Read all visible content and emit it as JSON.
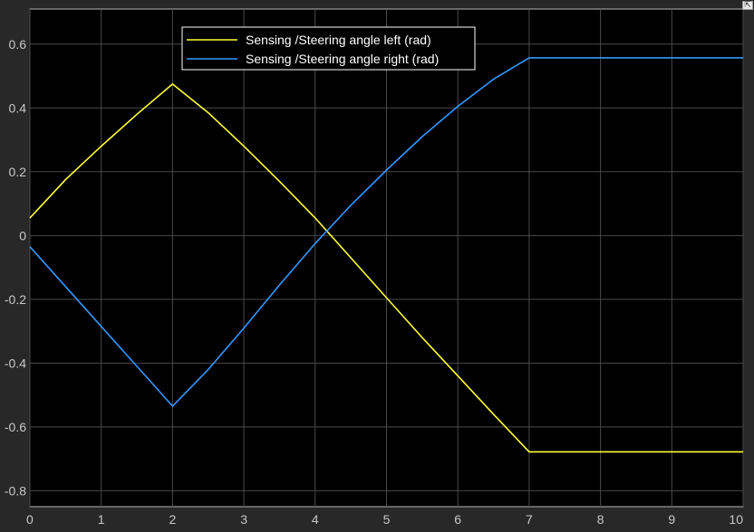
{
  "chart_data": {
    "type": "line",
    "title": "",
    "xlabel": "",
    "ylabel": "",
    "xlim": [
      0,
      10
    ],
    "ylim": [
      -0.85,
      0.71
    ],
    "xticks": [
      0,
      1,
      2,
      3,
      4,
      5,
      6,
      7,
      8,
      9,
      10
    ],
    "yticks": [
      -0.8,
      -0.6,
      -0.4,
      -0.2,
      0,
      0.2,
      0.4,
      0.6
    ],
    "grid": true,
    "background": "#000000",
    "legend_position": "top-center",
    "series": [
      {
        "name": "Sensing /Steering angle left (rad)",
        "color": "#ffff33",
        "x": [
          0,
          0.5,
          1,
          1.5,
          2,
          2.5,
          3,
          3.5,
          4,
          4.5,
          5,
          5.5,
          6,
          6.5,
          7,
          7.5,
          8,
          8.5,
          9,
          9.5,
          10
        ],
        "y": [
          0.055,
          0.175,
          0.28,
          0.38,
          0.475,
          0.385,
          0.28,
          0.17,
          0.055,
          -0.07,
          -0.195,
          -0.32,
          -0.44,
          -0.56,
          -0.678,
          -0.678,
          -0.678,
          -0.678,
          -0.678,
          -0.678,
          -0.678
        ]
      },
      {
        "name": "Sensing /Steering angle right (rad)",
        "color": "#3399ff",
        "x": [
          0,
          0.5,
          1,
          1.5,
          2,
          2.5,
          3,
          3.5,
          4,
          4.5,
          5,
          5.5,
          6,
          6.5,
          7,
          7.5,
          8,
          8.5,
          9,
          9.5,
          10
        ],
        "y": [
          -0.035,
          -0.16,
          -0.285,
          -0.41,
          -0.535,
          -0.42,
          -0.29,
          -0.155,
          -0.025,
          0.095,
          0.205,
          0.31,
          0.405,
          0.49,
          0.557,
          0.557,
          0.557,
          0.557,
          0.557,
          0.557,
          0.557
        ]
      }
    ]
  },
  "ui": {
    "corner_button_icon": "undock-icon"
  }
}
